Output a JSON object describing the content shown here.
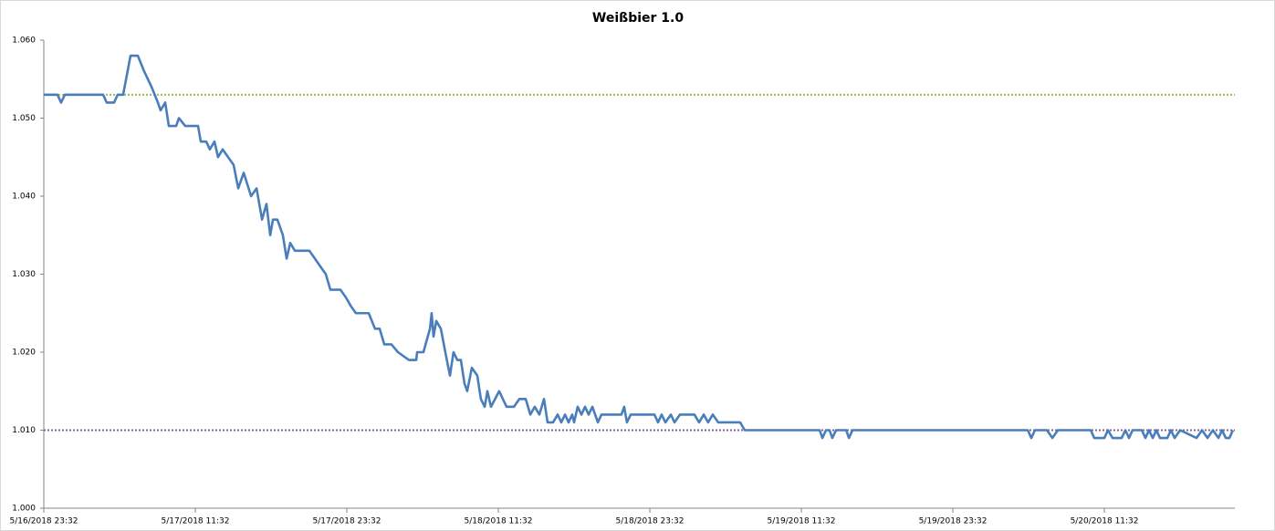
{
  "chart_data": {
    "type": "line",
    "title": "Weißbier 1.0",
    "xlim": [
      "5/16/2018 23:32",
      "5/20/2018 21:52"
    ],
    "xticks": [
      "5/16/2018 23:32",
      "5/17/2018 11:32",
      "5/17/2018 23:32",
      "5/18/2018 11:32",
      "5/18/2018 23:32",
      "5/19/2018 11:32",
      "5/19/2018 23:32",
      "5/20/2018 11:32"
    ],
    "ylim": [
      1.0,
      1.06
    ],
    "yticks": [
      {
        "value": 1.0,
        "label": "1.000"
      },
      {
        "value": 1.01,
        "label": "1.010"
      },
      {
        "value": 1.02,
        "label": "1.020"
      },
      {
        "value": 1.03,
        "label": "1.030"
      },
      {
        "value": 1.04,
        "label": "1.040"
      },
      {
        "value": 1.05,
        "label": "1.050"
      },
      {
        "value": 1.06,
        "label": "1.060"
      }
    ],
    "grid": false,
    "series": [
      {
        "color": "#9bbb59",
        "line_style": "dotted",
        "x": [
          "5/16/2018 23:32",
          "5/20/2018 21:52"
        ],
        "values": [
          1.053,
          1.053
        ]
      },
      {
        "color": "#8064a2",
        "line_style": "dotted",
        "x": [
          "5/16/2018 23:32",
          "5/20/2018 21:52"
        ],
        "values": [
          1.01,
          1.01
        ]
      },
      {
        "color": "#4a7ebb",
        "line_style": "solid",
        "x": [
          "5/16/2018 23:32",
          "5/17/2018 00:37",
          "5/17/2018 00:54",
          "5/17/2018 01:12",
          "5/17/2018 04:14",
          "5/17/2018 04:31",
          "5/17/2018 05:06",
          "5/17/2018 05:23",
          "5/17/2018 05:49",
          "5/17/2018 06:24",
          "5/17/2018 06:59",
          "5/17/2018 07:29",
          "5/17/2018 08:04",
          "5/17/2018 08:34",
          "5/17/2018 08:47",
          "5/17/2018 09:09",
          "5/17/2018 09:26",
          "5/17/2018 10:01",
          "5/17/2018 10:14",
          "5/17/2018 10:44",
          "5/17/2018 11:45",
          "5/17/2018 11:58",
          "5/17/2018 12:24",
          "5/17/2018 12:41",
          "5/17/2018 13:03",
          "5/17/2018 13:20",
          "5/17/2018 13:42",
          "5/17/2018 14:08",
          "5/17/2018 14:34",
          "5/17/2018 14:56",
          "5/17/2018 15:22",
          "5/17/2018 15:57",
          "5/17/2018 16:23",
          "5/17/2018 16:49",
          "5/17/2018 17:10",
          "5/17/2018 17:28",
          "5/17/2018 17:41",
          "5/17/2018 18:02",
          "5/17/2018 18:28",
          "5/17/2018 18:46",
          "5/17/2018 19:03",
          "5/17/2018 19:25",
          "5/17/2018 20:34",
          "5/17/2018 21:00",
          "5/17/2018 21:26",
          "5/17/2018 21:52",
          "5/17/2018 22:14",
          "5/17/2018 23:02",
          "5/17/2018 23:28",
          "5/17/2018 23:49",
          "5/18/2018 00:15",
          "5/18/2018 01:16",
          "5/18/2018 01:46",
          "5/18/2018 02:08",
          "5/18/2018 02:30",
          "5/18/2018 03:04",
          "5/18/2018 03:35",
          "5/18/2018 04:27",
          "5/18/2018 05:02",
          "5/18/2018 05:06",
          "5/18/2018 05:36",
          "5/18/2018 06:07",
          "5/18/2018 06:15",
          "5/18/2018 06:24",
          "5/18/2018 06:37",
          "5/18/2018 06:59",
          "5/18/2018 07:20",
          "5/18/2018 07:42",
          "5/18/2018 07:59",
          "5/18/2018 08:17",
          "5/18/2018 08:34",
          "5/18/2018 08:51",
          "5/18/2018 09:04",
          "5/18/2018 09:26",
          "5/18/2018 09:52",
          "5/18/2018 10:09",
          "5/18/2018 10:27",
          "5/18/2018 10:40",
          "5/18/2018 10:57",
          "5/18/2018 11:36",
          "5/18/2018 12:11",
          "5/18/2018 12:46",
          "5/18/2018 13:12",
          "5/18/2018 13:42",
          "5/18/2018 14:04",
          "5/18/2018 14:25",
          "5/18/2018 14:47",
          "5/18/2018 15:09",
          "5/18/2018 15:26",
          "5/18/2018 15:52",
          "5/18/2018 16:14",
          "5/18/2018 16:31",
          "5/18/2018 16:49",
          "5/18/2018 17:06",
          "5/18/2018 17:23",
          "5/18/2018 17:32",
          "5/18/2018 17:49",
          "5/18/2018 18:07",
          "5/18/2018 18:24",
          "5/18/2018 18:41",
          "5/18/2018 18:59",
          "5/18/2018 19:25",
          "5/18/2018 19:42",
          "5/18/2018 20:25",
          "5/18/2018 21:17",
          "5/18/2018 21:30",
          "5/18/2018 21:43",
          "5/18/2018 22:01",
          "5/18/2018 23:54",
          "5/19/2018 00:11",
          "5/19/2018 00:28",
          "5/19/2018 00:46",
          "5/19/2018 01:12",
          "5/19/2018 01:29",
          "5/19/2018 01:55",
          "5/19/2018 03:04",
          "5/19/2018 03:26",
          "5/19/2018 03:48",
          "5/19/2018 04:09",
          "5/19/2018 04:31",
          "5/19/2018 04:57",
          "5/19/2018 06:41",
          "5/19/2018 07:03",
          "5/19/2018 12:59",
          "5/19/2018 13:12",
          "5/19/2018 13:29",
          "5/19/2018 13:46",
          "5/19/2018 13:59",
          "5/19/2018 14:17",
          "5/19/2018 15:05",
          "5/19/2018 15:18",
          "5/19/2018 15:35",
          "5/20/2018 05:28",
          "5/20/2018 05:45",
          "5/20/2018 06:02",
          "5/20/2018 06:59",
          "5/20/2018 07:25",
          "5/20/2018 07:51",
          "5/20/2018 10:27",
          "5/20/2018 10:44",
          "5/20/2018 11:32",
          "5/20/2018 11:49",
          "5/20/2018 12:11",
          "5/20/2018 12:54",
          "5/20/2018 13:12",
          "5/20/2018 13:29",
          "5/20/2018 13:46",
          "5/20/2018 14:30",
          "5/20/2018 14:47",
          "5/20/2018 15:04",
          "5/20/2018 15:22",
          "5/20/2018 15:39",
          "5/20/2018 15:56",
          "5/20/2018 16:31",
          "5/20/2018 16:48",
          "5/20/2018 17:06",
          "5/20/2018 17:32",
          "5/20/2018 18:50",
          "5/20/2018 19:16",
          "5/20/2018 19:42",
          "5/20/2018 20:08",
          "5/20/2018 20:34",
          "5/20/2018 20:51",
          "5/20/2018 21:09",
          "5/20/2018 21:26",
          "5/20/2018 21:43"
        ],
        "values": [
          1.053,
          1.053,
          1.052,
          1.053,
          1.053,
          1.052,
          1.052,
          1.053,
          1.053,
          1.058,
          1.058,
          1.056,
          1.054,
          1.052,
          1.051,
          1.052,
          1.049,
          1.049,
          1.05,
          1.049,
          1.049,
          1.047,
          1.047,
          1.046,
          1.047,
          1.045,
          1.046,
          1.045,
          1.044,
          1.041,
          1.043,
          1.04,
          1.041,
          1.037,
          1.039,
          1.035,
          1.037,
          1.037,
          1.035,
          1.032,
          1.034,
          1.033,
          1.033,
          1.032,
          1.031,
          1.03,
          1.028,
          1.028,
          1.027,
          1.026,
          1.025,
          1.025,
          1.023,
          1.023,
          1.021,
          1.021,
          1.02,
          1.019,
          1.019,
          1.02,
          1.02,
          1.023,
          1.025,
          1.022,
          1.024,
          1.023,
          1.02,
          1.017,
          1.02,
          1.019,
          1.019,
          1.016,
          1.015,
          1.018,
          1.017,
          1.014,
          1.013,
          1.015,
          1.013,
          1.015,
          1.013,
          1.013,
          1.014,
          1.014,
          1.012,
          1.013,
          1.012,
          1.014,
          1.011,
          1.011,
          1.012,
          1.011,
          1.012,
          1.011,
          1.012,
          1.011,
          1.013,
          1.012,
          1.013,
          1.012,
          1.013,
          1.011,
          1.012,
          1.012,
          1.012,
          1.013,
          1.011,
          1.012,
          1.012,
          1.011,
          1.012,
          1.011,
          1.012,
          1.011,
          1.012,
          1.012,
          1.011,
          1.012,
          1.011,
          1.012,
          1.011,
          1.011,
          1.01,
          1.01,
          1.009,
          1.01,
          1.01,
          1.009,
          1.01,
          1.01,
          1.009,
          1.01,
          1.01,
          1.009,
          1.01,
          1.01,
          1.009,
          1.01,
          1.01,
          1.009,
          1.009,
          1.01,
          1.009,
          1.009,
          1.01,
          1.009,
          1.01,
          1.01,
          1.009,
          1.01,
          1.009,
          1.01,
          1.009,
          1.009,
          1.01,
          1.009,
          1.01,
          1.009,
          1.01,
          1.009,
          1.01,
          1.009,
          1.01,
          1.009,
          1.009,
          1.01
        ]
      }
    ]
  }
}
